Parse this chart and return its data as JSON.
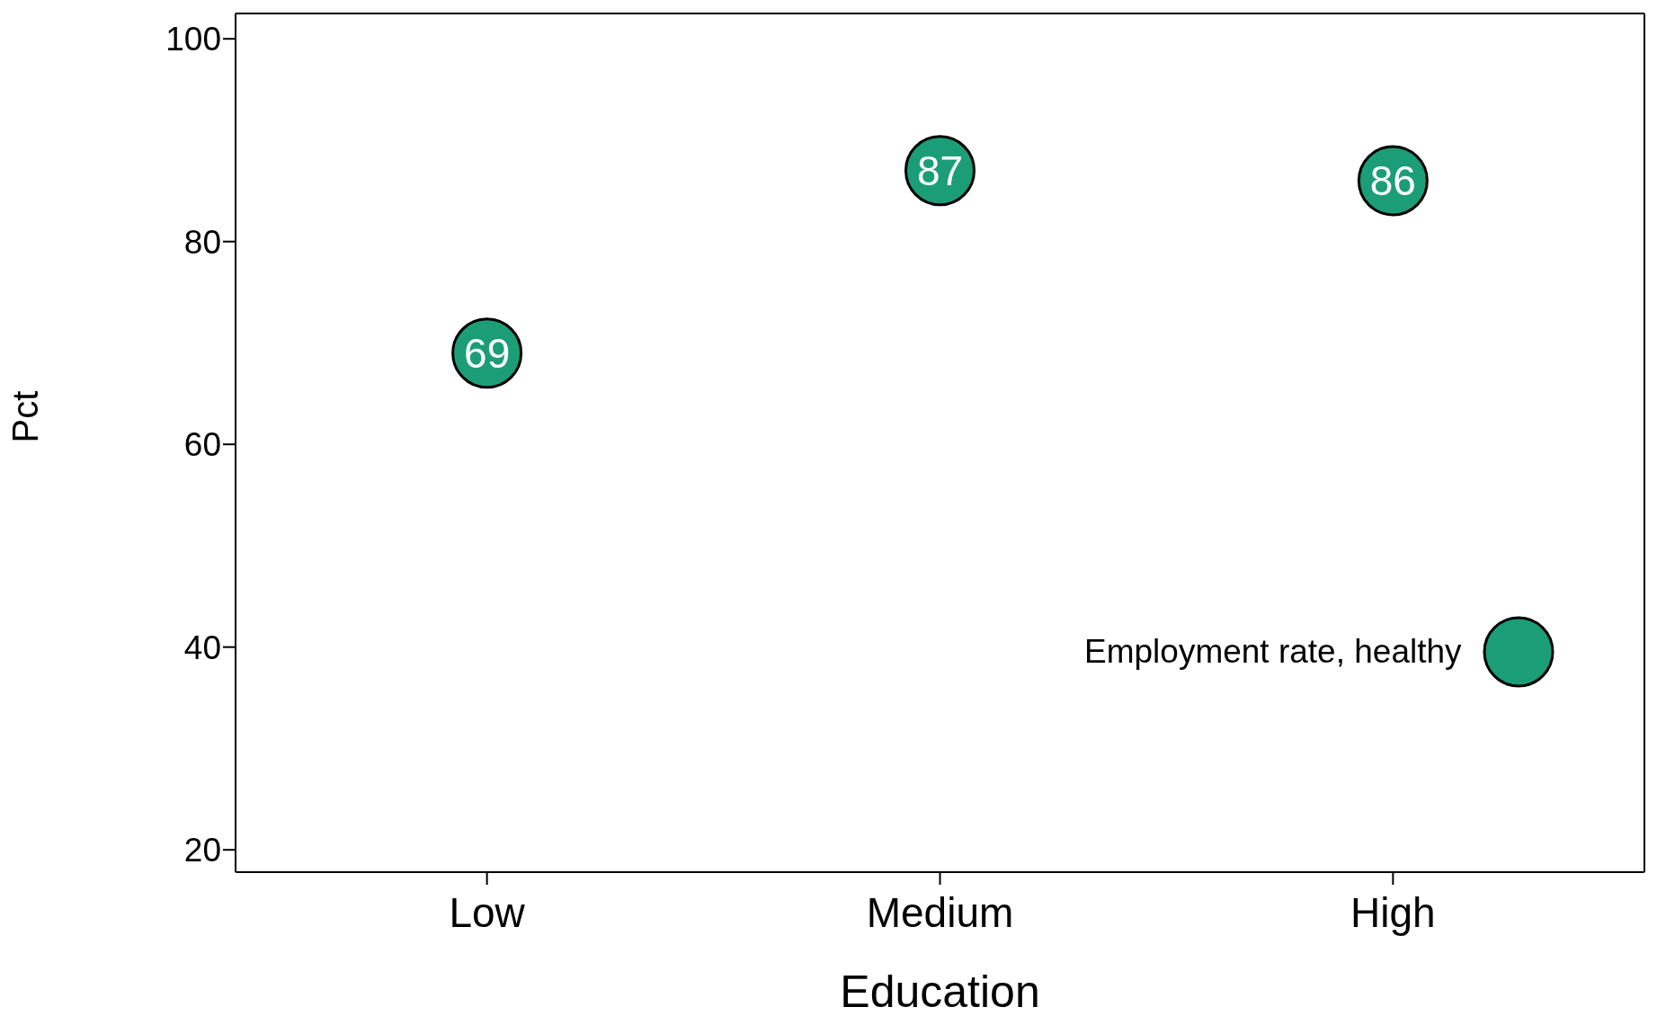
{
  "chart_data": {
    "type": "scatter",
    "xlabel": "Education",
    "ylabel": "Pct",
    "categories": [
      "Low",
      "Medium",
      "High"
    ],
    "series": [
      {
        "name": "Employment rate, healthy",
        "color": "#1b9e77",
        "values": [
          69,
          87,
          86
        ]
      }
    ],
    "ylim": [
      17.8,
      102.5
    ],
    "yticks": [
      20,
      40,
      60,
      80,
      100
    ],
    "data_labels": true,
    "grid": false,
    "legend": "bottom right",
    "marker": "circle"
  }
}
